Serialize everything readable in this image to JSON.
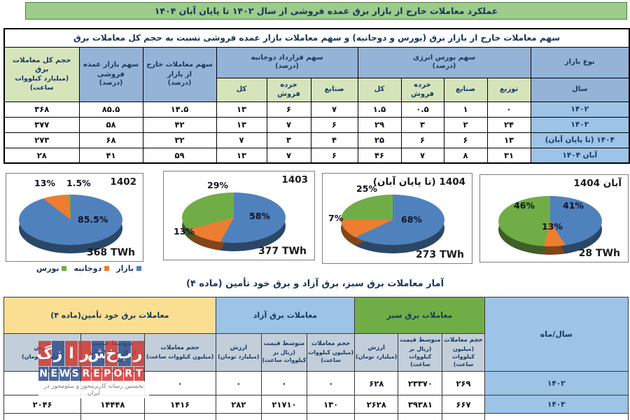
{
  "page": {
    "main_title": "عملکرد معاملات خارج از بازار برق عمده فروشی از سال ۱۴۰۲ تا پایان آبان ۱۴۰۴",
    "section2_title": "آمار معاملات برق سبز، برق آزاد و برق خود تأمین (ماده ۴)"
  },
  "colors": {
    "title_bar_green": "#9CCB8C",
    "header_blue": "#95B3D7",
    "subheader_light_green": "#D6E4BC",
    "year_cell_blue": "#9DC3E6",
    "group_green": "#71AD47",
    "group_yellow": "#FADF92",
    "subheader_gray_blue": "#C2CEDA",
    "pie_blue": "#4F81BD",
    "pie_orange": "#ED7D31",
    "pie_green": "#70AD47"
  },
  "table1": {
    "title": "سهم معاملات خارج از بازار برق (بورس و دوجانبه) و سهم معاملات بازار عمده فروشی نسبت به حجم کل معاملات برق",
    "headers": {
      "market_type": "نوع بازار",
      "year": "سال",
      "bours_label": "سهم بورس انرژی",
      "dojanebe_label": "سهم قرارداد دوجانبه",
      "percent_unit": "(درصد)",
      "out_label": "سهم معاملات خارج از بازار",
      "wholesale_label": "سهم بازار عمده فروشی",
      "volume_label": "حجم کل معاملات برق",
      "volume_unit": "(میلیارد کیلووات ساعت)",
      "sub": {
        "tozi": "توزیع",
        "sanaye": "صنایع",
        "khorde": "خرده فروش",
        "kol": "کل"
      }
    },
    "rows": [
      [
        "۱۴۰۲",
        "۰",
        "۱",
        "۰.۵",
        "۱.۵",
        "۷",
        "۶",
        "۱۳",
        "۱۴.۵",
        "۸۵.۵",
        "۳۶۸"
      ],
      [
        "۱۴۰۳",
        "۲۴",
        "۲",
        "۳",
        "۲۹",
        "۶",
        "۷",
        "۱۳",
        "۴۲",
        "۵۸",
        "۳۷۷"
      ],
      [
        "۱۴۰۴ (تا پایان آبان)",
        "۱۳",
        "۶",
        "۶",
        "۲۵",
        "۴",
        "۳",
        "۷",
        "۳۲",
        "۶۸",
        "۲۷۳"
      ],
      [
        "آبان ۱۴۰۴",
        "۳۱",
        "۸",
        "۷",
        "۴۶",
        "۶",
        "۷",
        "۱۳",
        "۵۹",
        "۴۱",
        "۲۸"
      ]
    ]
  },
  "chart_data": [
    {
      "type": "pie",
      "title": "1402",
      "total_label": "368 TWh",
      "slices": [
        {
          "name": "بازار",
          "value": 85.5,
          "label": "85.5%",
          "color": "#4F81BD"
        },
        {
          "name": "دوجانبه",
          "value": 13,
          "label": "13%",
          "color": "#ED7D31"
        },
        {
          "name": "بورس",
          "value": 1.5,
          "label": "1.5%",
          "color": "#70AD47"
        }
      ]
    },
    {
      "type": "pie",
      "title": "1403",
      "total_label": "377 TWh",
      "slices": [
        {
          "name": "بازار",
          "value": 58,
          "label": "58%",
          "color": "#4F81BD"
        },
        {
          "name": "دوجانبه",
          "value": 13,
          "label": "13%",
          "color": "#ED7D31"
        },
        {
          "name": "بورس",
          "value": 29,
          "label": "29%",
          "color": "#70AD47"
        }
      ]
    },
    {
      "type": "pie",
      "title": "1404 (تا پایان آبان)",
      "total_label": "273 TWh",
      "slices": [
        {
          "name": "بازار",
          "value": 68,
          "label": "68%",
          "color": "#4F81BD"
        },
        {
          "name": "دوجانبه",
          "value": 7,
          "label": "7%",
          "color": "#ED7D31"
        },
        {
          "name": "بورس",
          "value": 25,
          "label": "25%",
          "color": "#70AD47"
        }
      ]
    },
    {
      "type": "pie",
      "title": "آبان 1404",
      "total_label": "28 TWh",
      "slices": [
        {
          "name": "بازار",
          "value": 41,
          "label": "41%",
          "color": "#4F81BD"
        },
        {
          "name": "دوجانبه",
          "value": 13,
          "label": "13%",
          "color": "#ED7D31"
        },
        {
          "name": "بورس",
          "value": 46,
          "label": "46%",
          "color": "#70AD47"
        }
      ]
    }
  ],
  "legend": {
    "items": [
      {
        "label": "بازار",
        "color": "#4F81BD"
      },
      {
        "label": "دوجانبه",
        "color": "#ED7D31"
      },
      {
        "label": "بورس",
        "color": "#70AD47"
      }
    ]
  },
  "table2": {
    "groups": {
      "khod": "معاملات برق خود تأمین(ماده ۴)",
      "azad": "معاملات برق آزاد",
      "sabz": "معاملات برق سبز",
      "year": "سال/ماه"
    },
    "sub": {
      "hajm_label": "حجم معاملات",
      "hajm_unit": "(میلیون کیلووات ساعت)",
      "price_label": "متوسط قیمت",
      "price_unit": "(ریال بر کیلووات ساعت)",
      "value_label": "ارزش",
      "value_unit": "(میلیارد تومان)"
    },
    "rows": [
      [
        "۱۴۰۲",
        "۲۶۹",
        "۲۳۳۷۰",
        "۶۲۸",
        "۰",
        "۰",
        "۰",
        "۰",
        "",
        ""
      ],
      [
        "۱۴۰۳",
        "۶۶۷",
        "۳۹۳۸۱",
        "۲۶۲۸",
        "۱۳۰",
        "۲۱۷۱۰",
        "۲۸۲",
        "۱۴۱۶",
        "۱۴۴۴۸",
        "۲۰۴۶"
      ]
    ]
  },
  "watermark": {
    "fa_tiles": [
      {
        "ch": "گ",
        "color": "red"
      },
      {
        "ch": "ز",
        "color": "blue"
      },
      {
        "ch": "ا",
        "color": "red"
      },
      {
        "ch": "ر",
        "color": "red"
      },
      {
        "ch": "ش",
        "color": "blue"
      },
      {
        "ch": "خ",
        "color": "red"
      },
      {
        "ch": "ب",
        "color": "blue"
      },
      {
        "ch": "ر",
        "color": "red"
      }
    ],
    "en_tiles": [
      {
        "ch": "N",
        "color": "blue"
      },
      {
        "ch": "E",
        "color": "blue"
      },
      {
        "ch": "W",
        "color": "blue"
      },
      {
        "ch": "S",
        "color": "blue"
      },
      {
        "ch": "R",
        "color": "red"
      },
      {
        "ch": "E",
        "color": "red"
      },
      {
        "ch": "P",
        "color": "red"
      },
      {
        "ch": "O",
        "color": "red"
      },
      {
        "ch": "R",
        "color": "red"
      },
      {
        "ch": "T",
        "color": "red"
      }
    ],
    "tagline": "نخستین رسانه کاربرمحور و سئومحور در ایران"
  }
}
